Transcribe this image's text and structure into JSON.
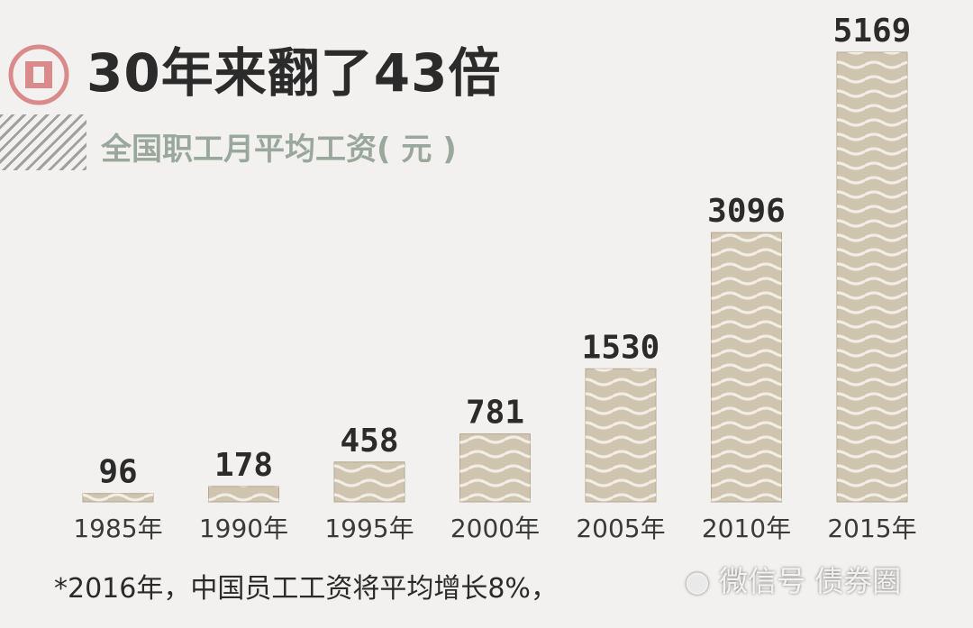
{
  "header": {
    "title": "30年来翻了43倍",
    "subtitle": "全国职工月平均工资( 元 )"
  },
  "footnote": "*2016年，中国员工工资将平均增长8%，",
  "watermark": "微信号 债券圈",
  "icons": {
    "logo": "brand-logo-icon",
    "wechat": "wechat-icon"
  },
  "colors": {
    "bar_fill": "#cfc4b0",
    "bar_wave": "#f3eee5",
    "bar_border": "#b3a98f",
    "background": "#f3f1ef",
    "logo": "#d98a8a"
  },
  "chart_data": {
    "type": "bar",
    "title": "30年来翻了43倍",
    "subtitle": "全国职工月平均工资( 元 )",
    "categories": [
      "1985年",
      "1990年",
      "1995年",
      "2000年",
      "2005年",
      "2010年",
      "2015年"
    ],
    "values": [
      96,
      178,
      458,
      781,
      1530,
      3096,
      5169
    ],
    "data_labels": [
      "96",
      "178",
      "458",
      "781",
      "1530",
      "3096",
      "5169"
    ],
    "xlabel": "",
    "ylabel": "",
    "ylim": [
      0,
      5169
    ],
    "grid": false,
    "legend": "none"
  }
}
